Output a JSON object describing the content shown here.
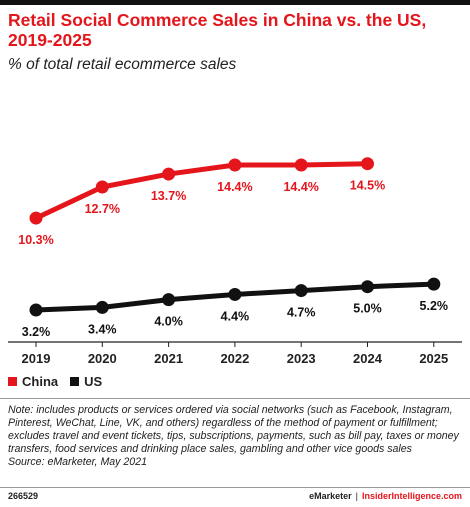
{
  "header": {
    "title": "Retail Social Commerce Sales in China vs. the US, 2019-2025",
    "subtitle": "% of total retail ecommerce sales"
  },
  "colors": {
    "china": "#e4161c",
    "us": "#111111",
    "axis": "#222222",
    "accent": "#e4161c"
  },
  "chart_data": {
    "type": "line",
    "x": [
      "2019",
      "2020",
      "2021",
      "2022",
      "2023",
      "2024",
      "2025"
    ],
    "series": [
      {
        "name": "China",
        "values": [
          10.3,
          12.7,
          13.7,
          14.4,
          14.4,
          14.5,
          null
        ],
        "labels": [
          "10.3%",
          "12.7%",
          "13.7%",
          "14.4%",
          "14.4%",
          "14.5%",
          null
        ]
      },
      {
        "name": "US",
        "values": [
          3.2,
          3.4,
          4.0,
          4.4,
          4.7,
          5.0,
          5.2
        ],
        "labels": [
          "3.2%",
          "3.4%",
          "4.0%",
          "4.4%",
          "4.7%",
          "5.0%",
          "5.2%"
        ]
      }
    ],
    "legend_position": "bottom-left",
    "grid": false
  },
  "legend": {
    "items": [
      {
        "label": "China"
      },
      {
        "label": "US"
      }
    ]
  },
  "note": {
    "text": "Note: includes products or services ordered via social networks (such as Facebook, Instagram, Pinterest, WeChat, Line, VK, and others) regardless of the method of payment or fulfillment; excludes travel and event tickets, tips, subscriptions, payments, such as bill pay, taxes or money transfers, food services and drinking place sales, gambling and other vice goods sales",
    "source": "Source: eMarketer, May 2021"
  },
  "footer": {
    "chart_id": "266529",
    "brand": "eMarketer",
    "separator": "|",
    "site": "InsiderIntelligence.com"
  }
}
